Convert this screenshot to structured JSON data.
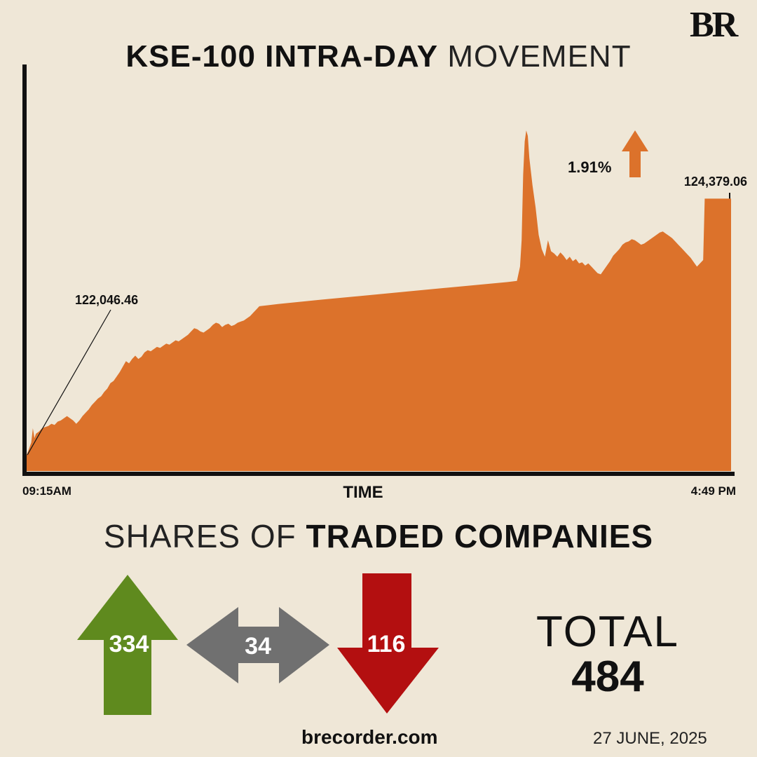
{
  "brand": {
    "logo": "BR"
  },
  "title": {
    "bold": "KSE-100 INTRA-DAY",
    "light": "MOVEMENT"
  },
  "chart_data": {
    "type": "area",
    "title": "KSE-100 INTRA-DAY MOVEMENT",
    "xlabel": "TIME",
    "ylabel": "",
    "x_start_label": "09:15AM",
    "x_end_label": "4:49 PM",
    "open_value_label": "122,046.46",
    "close_value_label": "124,379.06",
    "change_label": "1.91%",
    "change_direction": "up",
    "open_value": 122046.46,
    "close_value": 124379.06,
    "ylim": [
      121900,
      125600
    ],
    "xlim": [
      0,
      454
    ],
    "x_unit": "minutes after 09:15AM",
    "series": [
      {
        "values": [
          [
            0,
            122046
          ],
          [
            1,
            122080
          ],
          [
            2,
            122120
          ],
          [
            3,
            122160
          ],
          [
            4,
            122290
          ],
          [
            5,
            122200
          ],
          [
            6,
            122240
          ],
          [
            8,
            122260
          ],
          [
            10,
            122290
          ],
          [
            12,
            122300
          ],
          [
            14,
            122310
          ],
          [
            16,
            122330
          ],
          [
            18,
            122320
          ],
          [
            20,
            122350
          ],
          [
            22,
            122360
          ],
          [
            24,
            122380
          ],
          [
            26,
            122400
          ],
          [
            28,
            122380
          ],
          [
            30,
            122360
          ],
          [
            32,
            122330
          ],
          [
            34,
            122360
          ],
          [
            36,
            122400
          ],
          [
            38,
            122430
          ],
          [
            40,
            122460
          ],
          [
            42,
            122500
          ],
          [
            44,
            122530
          ],
          [
            46,
            122560
          ],
          [
            48,
            122580
          ],
          [
            50,
            122620
          ],
          [
            52,
            122650
          ],
          [
            54,
            122700
          ],
          [
            56,
            122720
          ],
          [
            58,
            122760
          ],
          [
            60,
            122800
          ],
          [
            62,
            122850
          ],
          [
            64,
            122900
          ],
          [
            66,
            122880
          ],
          [
            68,
            122920
          ],
          [
            70,
            122950
          ],
          [
            72,
            122920
          ],
          [
            74,
            122940
          ],
          [
            76,
            122980
          ],
          [
            78,
            123000
          ],
          [
            80,
            122990
          ],
          [
            82,
            123010
          ],
          [
            84,
            123030
          ],
          [
            86,
            123020
          ],
          [
            88,
            123040
          ],
          [
            90,
            123060
          ],
          [
            92,
            123050
          ],
          [
            94,
            123070
          ],
          [
            96,
            123090
          ],
          [
            98,
            123080
          ],
          [
            100,
            123100
          ],
          [
            102,
            123120
          ],
          [
            104,
            123140
          ],
          [
            106,
            123170
          ],
          [
            108,
            123200
          ],
          [
            110,
            123190
          ],
          [
            112,
            123170
          ],
          [
            114,
            123160
          ],
          [
            116,
            123180
          ],
          [
            118,
            123200
          ],
          [
            120,
            123230
          ],
          [
            122,
            123250
          ],
          [
            124,
            123240
          ],
          [
            126,
            123210
          ],
          [
            128,
            123230
          ],
          [
            130,
            123240
          ],
          [
            132,
            123220
          ],
          [
            134,
            123230
          ],
          [
            136,
            123250
          ],
          [
            138,
            123260
          ],
          [
            140,
            123270
          ],
          [
            142,
            123290
          ],
          [
            144,
            123310
          ],
          [
            146,
            123340
          ],
          [
            148,
            123370
          ],
          [
            150,
            123400
          ],
          [
            162,
            123420
          ],
          [
            190,
            123460
          ],
          [
            220,
            123500
          ],
          [
            250,
            123540
          ],
          [
            280,
            123580
          ],
          [
            310,
            123620
          ],
          [
            316,
            123630
          ],
          [
            318,
            123760
          ],
          [
            319,
            124000
          ],
          [
            320,
            124600
          ],
          [
            321,
            124900
          ],
          [
            322,
            125000
          ],
          [
            323,
            124950
          ],
          [
            324,
            124750
          ],
          [
            326,
            124500
          ],
          [
            328,
            124300
          ],
          [
            330,
            124050
          ],
          [
            332,
            123920
          ],
          [
            334,
            123850
          ],
          [
            336,
            124000
          ],
          [
            338,
            123900
          ],
          [
            340,
            123880
          ],
          [
            342,
            123850
          ],
          [
            344,
            123890
          ],
          [
            346,
            123860
          ],
          [
            348,
            123820
          ],
          [
            350,
            123850
          ],
          [
            352,
            123810
          ],
          [
            354,
            123830
          ],
          [
            356,
            123790
          ],
          [
            358,
            123800
          ],
          [
            360,
            123770
          ],
          [
            362,
            123790
          ],
          [
            364,
            123760
          ],
          [
            366,
            123730
          ],
          [
            368,
            123700
          ],
          [
            370,
            123690
          ],
          [
            372,
            123730
          ],
          [
            374,
            123770
          ],
          [
            376,
            123810
          ],
          [
            378,
            123860
          ],
          [
            380,
            123890
          ],
          [
            382,
            123920
          ],
          [
            384,
            123960
          ],
          [
            386,
            123980
          ],
          [
            388,
            123990
          ],
          [
            390,
            124010
          ],
          [
            392,
            124000
          ],
          [
            394,
            123980
          ],
          [
            396,
            123960
          ],
          [
            398,
            123970
          ],
          [
            400,
            123990
          ],
          [
            402,
            124010
          ],
          [
            404,
            124030
          ],
          [
            406,
            124050
          ],
          [
            408,
            124070
          ],
          [
            410,
            124080
          ],
          [
            412,
            124060
          ],
          [
            414,
            124040
          ],
          [
            416,
            124020
          ],
          [
            418,
            123990
          ],
          [
            420,
            123960
          ],
          [
            422,
            123930
          ],
          [
            424,
            123900
          ],
          [
            426,
            123870
          ],
          [
            428,
            123840
          ],
          [
            430,
            123800
          ],
          [
            432,
            123760
          ],
          [
            434,
            123790
          ],
          [
            436,
            123820
          ],
          [
            437,
            124379
          ],
          [
            454,
            124379
          ]
        ]
      }
    ]
  },
  "breadth": {
    "title_light": "SHARES OF",
    "title_bold": "TRADED COMPANIES",
    "advances": 334,
    "unchanged": 34,
    "declines": 116,
    "total_label": "TOTAL",
    "total": 484,
    "colors": {
      "advances": "#5f8a1e",
      "unchanged": "#707070",
      "declines": "#b30f10",
      "area": "#dc722b"
    }
  },
  "footer": {
    "website": "brecorder.com",
    "date": "27 JUNE, 2025"
  }
}
